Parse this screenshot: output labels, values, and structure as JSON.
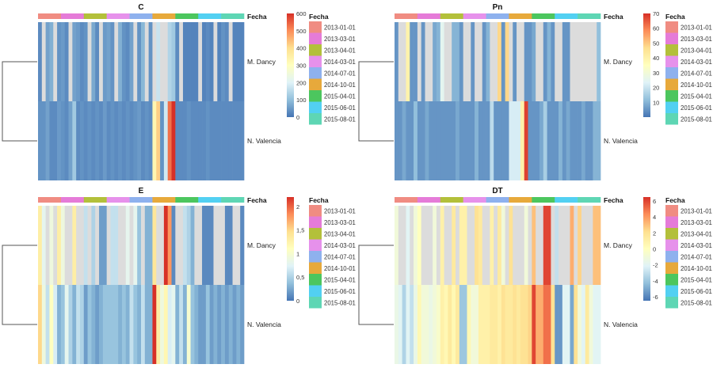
{
  "fecha_legend": {
    "title": "Fecha",
    "entries": [
      {
        "label": "2013-01-01",
        "color": "#F08C82"
      },
      {
        "label": "2013-03-01",
        "color": "#E57BD8"
      },
      {
        "label": "2013-04-01",
        "color": "#B3C03A"
      },
      {
        "label": "2014-03-01",
        "color": "#E691EB"
      },
      {
        "label": "2014-07-01",
        "color": "#8EB1EE"
      },
      {
        "label": "2014-10-01",
        "color": "#E7A93B"
      },
      {
        "label": "2015-04-01",
        "color": "#4CC65E"
      },
      {
        "label": "2015-06-01",
        "color": "#52D0F2"
      },
      {
        "label": "2015-08-01",
        "color": "#5ED6B4"
      }
    ]
  },
  "annotation_label": "Fecha",
  "rows": [
    "M. Dancy",
    "N. Valencia"
  ],
  "palette": [
    "#4575B4",
    "#91BFDB",
    "#E0F3F8",
    "#FFFFBF",
    "#FEE090",
    "#FC8D59",
    "#D73027"
  ],
  "missing_color": "#DCDCDC",
  "chart_data": [
    {
      "type": "heatmap",
      "title": "C",
      "range": [
        0,
        600
      ],
      "ticks": [
        "0",
        "100",
        "200",
        "300",
        "400",
        "500",
        "600"
      ],
      "tick_values": [
        0,
        100,
        200,
        300,
        400,
        500,
        600
      ],
      "columns_per_date": [
        6,
        6,
        6,
        6,
        6,
        6,
        6,
        6,
        6
      ],
      "rows": [
        {
          "name": "M. Dancy",
          "values": [
            30,
            null,
            60,
            80,
            null,
            40,
            50,
            30,
            null,
            60,
            50,
            30,
            40,
            null,
            70,
            30,
            null,
            50,
            60,
            40,
            null,
            80,
            40,
            30,
            60,
            null,
            40,
            90,
            null,
            40,
            null,
            170,
            null,
            null,
            140,
            120,
            30,
            null,
            20,
            20,
            20,
            20,
            null,
            20,
            30,
            20,
            null,
            20,
            40,
            30,
            null,
            20,
            20,
            20
          ]
        },
        {
          "name": "N. Valencia",
          "values": [
            40,
            40,
            60,
            30,
            30,
            50,
            40,
            30,
            60,
            120,
            30,
            40,
            30,
            40,
            30,
            40,
            30,
            50,
            30,
            40,
            30,
            40,
            30,
            40,
            30,
            40,
            50,
            30,
            40,
            30,
            330,
            420,
            40,
            180,
            530,
            600,
            30,
            30,
            30,
            40,
            30,
            30,
            30,
            30,
            40,
            30,
            30,
            30,
            30,
            30,
            30,
            30,
            30,
            30
          ]
        }
      ]
    },
    {
      "type": "heatmap",
      "title": "Pn",
      "range": [
        0,
        70
      ],
      "ticks": [
        "10",
        "20",
        "30",
        "40",
        "50",
        "60",
        "70"
      ],
      "tick_values": [
        10,
        20,
        30,
        40,
        50,
        60,
        70
      ],
      "columns_per_date": [
        6,
        6,
        6,
        6,
        6,
        6,
        6,
        6,
        6
      ],
      "rows": [
        {
          "name": "M. Dancy",
          "values": [
            5,
            null,
            null,
            40,
            5,
            5,
            null,
            5,
            null,
            null,
            8,
            10,
            25,
            null,
            null,
            10,
            10,
            5,
            null,
            null,
            5,
            null,
            null,
            5,
            10,
            null,
            null,
            48,
            5,
            48,
            null,
            5,
            null,
            null,
            5,
            5,
            8,
            null,
            null,
            5,
            10,
            5,
            null,
            null,
            5,
            5,
            null,
            null,
            null,
            null,
            null,
            null,
            null,
            12
          ]
        },
        {
          "name": "N. Valencia",
          "values": [
            5,
            5,
            8,
            5,
            5,
            12,
            5,
            5,
            8,
            5,
            5,
            5,
            5,
            5,
            5,
            5,
            8,
            5,
            5,
            5,
            5,
            10,
            5,
            5,
            5,
            18,
            5,
            5,
            5,
            5,
            22,
            22,
            22,
            40,
            68,
            5,
            5,
            5,
            8,
            15,
            5,
            5,
            5,
            10,
            5,
            8,
            5,
            5,
            5,
            8,
            5,
            5,
            10,
            10
          ]
        }
      ]
    },
    {
      "type": "heatmap",
      "title": "E",
      "range": [
        0,
        2.2
      ],
      "ticks": [
        "0",
        "0,5",
        "1",
        "1,5",
        "2"
      ],
      "tick_values": [
        0,
        0.5,
        1,
        1.5,
        2
      ],
      "columns_per_date": [
        6,
        6,
        6,
        6,
        6,
        6,
        6,
        6,
        6
      ],
      "rows": [
        {
          "name": "M. Dancy",
          "values": [
            1.3,
            0.8,
            null,
            0.9,
            null,
            1.3,
            0.9,
            null,
            null,
            1.3,
            null,
            null,
            0.6,
            null,
            0.5,
            null,
            0.2,
            0.2,
            null,
            0.6,
            0.6,
            null,
            null,
            0.8,
            null,
            0.8,
            0.4,
            null,
            0.3,
            0.3,
            1.4,
            null,
            null,
            2.2,
            1.8,
            0.1,
            null,
            null,
            0.6,
            0.5,
            0.3,
            null,
            null,
            0.1,
            0.1,
            0.1,
            null,
            null,
            null,
            0.1,
            0.1,
            null,
            null,
            0.1
          ]
        },
        {
          "name": "N. Valencia",
          "values": [
            1.5,
            0.9,
            0.6,
            1.1,
            0.7,
            0.3,
            0.4,
            0.8,
            0.5,
            0.3,
            0.6,
            0.5,
            0.2,
            0.4,
            0.3,
            0.2,
            0.3,
            0.4,
            0.4,
            0.4,
            0.4,
            0.3,
            0.4,
            0.3,
            0.6,
            0.4,
            0.3,
            0.6,
            0.3,
            0.3,
            2.2,
            1.3,
            0.9,
            1.2,
            0.7,
            0.8,
            0.3,
            0.6,
            0.3,
            1.0,
            0.4,
            0.3,
            0.2,
            0.2,
            0.4,
            0.2,
            0.3,
            0.2,
            0.3,
            0.2,
            0.3,
            0.2,
            0.3,
            0.2
          ]
        }
      ]
    },
    {
      "type": "heatmap",
      "title": "DT",
      "range": [
        -6.5,
        6.5
      ],
      "ticks": [
        "-6",
        "-4",
        "-2",
        "0",
        "2",
        "4",
        "6"
      ],
      "tick_values": [
        -6,
        -4,
        -2,
        0,
        2,
        4,
        6
      ],
      "columns_per_date": [
        6,
        6,
        6,
        6,
        6,
        6,
        6,
        6,
        6
      ],
      "rows": [
        {
          "name": "M. Dancy",
          "values": [
            -1,
            null,
            null,
            -2,
            null,
            -1,
            0,
            null,
            null,
            null,
            -1,
            null,
            1,
            null,
            null,
            1.5,
            null,
            1,
            1,
            null,
            null,
            2,
            1.5,
            null,
            null,
            1,
            null,
            1.5,
            -1,
            null,
            2,
            null,
            null,
            null,
            -1,
            null,
            3,
            null,
            null,
            6,
            6,
            null,
            -3,
            null,
            null,
            null,
            3.5,
            null,
            2.5,
            null,
            null,
            null,
            3,
            3
          ]
        },
        {
          "name": "N. Valencia",
          "values": [
            -1.5,
            -2,
            -3.5,
            -2,
            -3,
            -1.5,
            0.5,
            -1,
            -1,
            -1.5,
            -1,
            -0.5,
            1,
            0.5,
            1.5,
            0.5,
            1.5,
            -4,
            -4,
            0.5,
            -1,
            -1,
            1,
            1,
            1,
            1.5,
            1.5,
            1,
            2,
            1.5,
            1.5,
            2,
            1.5,
            2,
            2,
            2.5,
            6,
            3.5,
            3.5,
            5,
            5,
            2,
            -5.5,
            -5.5,
            -2,
            -2,
            -5,
            2,
            -1,
            -2,
            1.5,
            -1,
            -2,
            -2
          ]
        }
      ]
    }
  ]
}
